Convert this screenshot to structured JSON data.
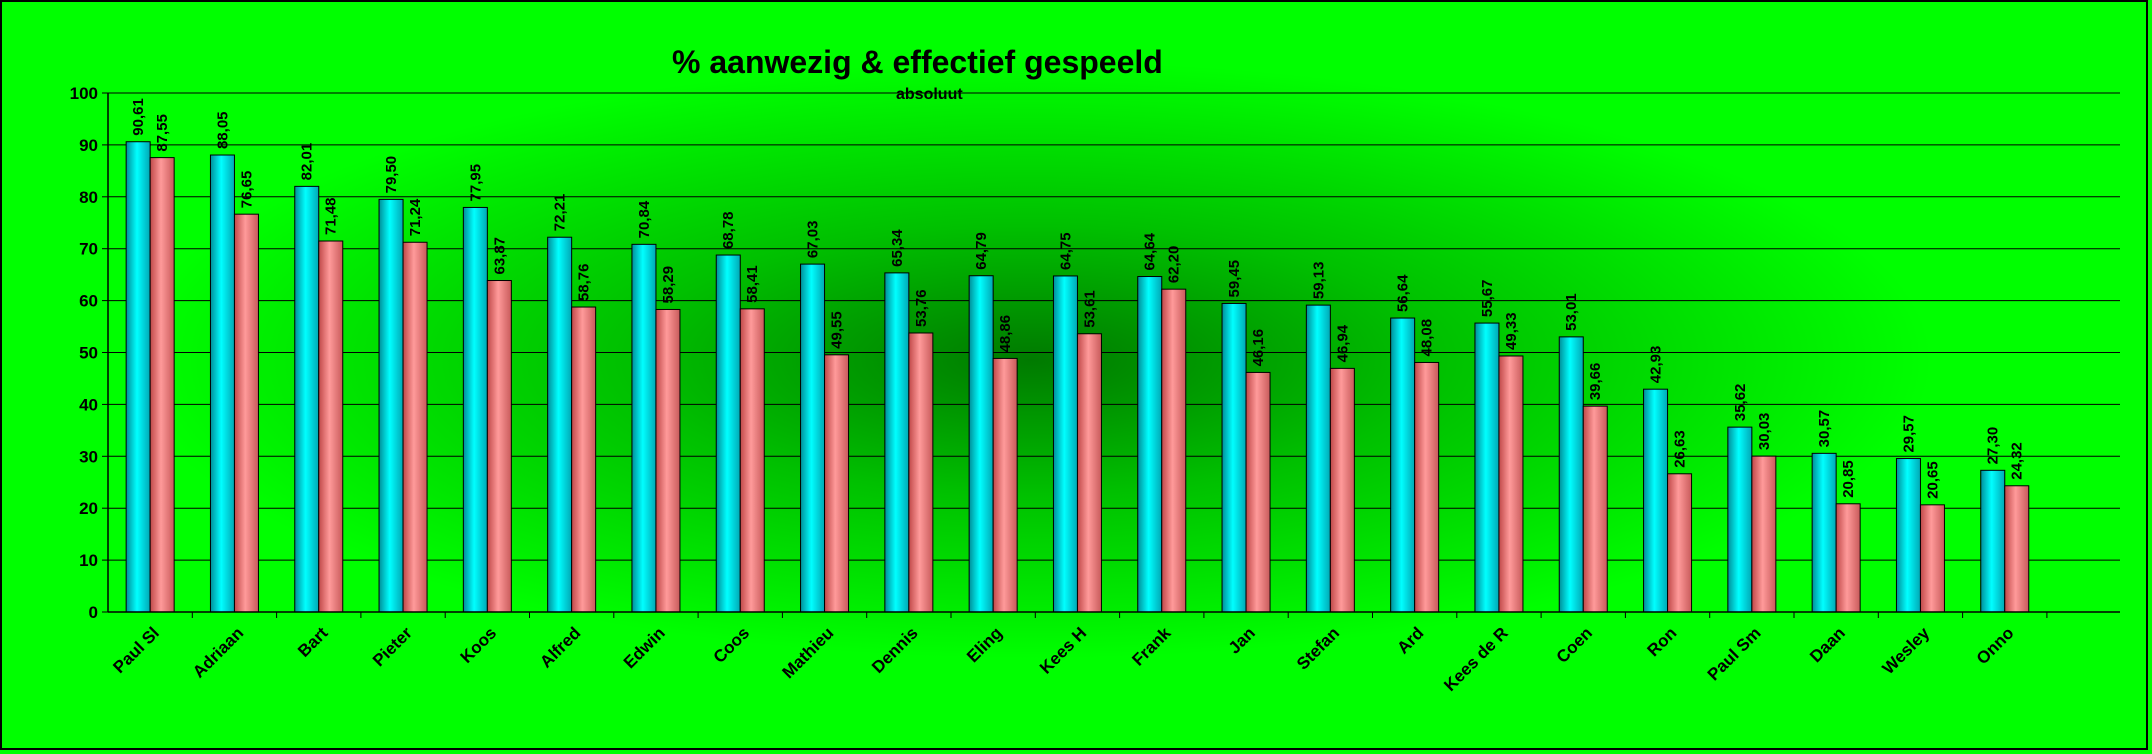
{
  "chart_data": {
    "type": "bar",
    "title": "% aanwezig & effectief gespeeld",
    "subtitle": "absoluut",
    "categories": [
      "Paul Sl",
      "Adriaan",
      "Bart",
      "Pieter",
      "Koos",
      "Alfred",
      "Edwin",
      "Coos",
      "Mathieu",
      "Dennis",
      "Eling",
      "Kees H",
      "Frank",
      "Jan",
      "Stefan",
      "Ard",
      "Kees de R",
      "Coen",
      "Ron",
      "Paul Sm",
      "Daan",
      "Wesley",
      "Onno"
    ],
    "series": [
      {
        "values": [
          90.61,
          88.05,
          82.01,
          79.5,
          77.95,
          72.21,
          70.84,
          68.78,
          67.03,
          65.34,
          64.79,
          64.75,
          64.64,
          59.45,
          59.13,
          56.64,
          55.67,
          53.01,
          42.93,
          35.62,
          30.57,
          29.57,
          27.3
        ],
        "labels": [
          "90,61",
          "88,05",
          "82,01",
          "79,50",
          "77,95",
          "72,21",
          "70,84",
          "68,78",
          "67,03",
          "65,34",
          "64,79",
          "64,75",
          "64,64",
          "59,45",
          "59,13",
          "56,64",
          "55,67",
          "53,01",
          "42,93",
          "35,62",
          "30,57",
          "29,57",
          "27,30"
        ],
        "color": "#00e5f0"
      },
      {
        "values": [
          87.55,
          76.65,
          71.48,
          71.24,
          63.87,
          58.76,
          58.29,
          58.41,
          49.55,
          53.76,
          48.86,
          53.61,
          62.2,
          46.16,
          46.94,
          48.08,
          49.33,
          39.66,
          26.63,
          30.03,
          20.85,
          20.65,
          24.32
        ],
        "labels": [
          "87,55",
          "76,65",
          "71,48",
          "71,24",
          "63,87",
          "58,76",
          "58,29",
          "58,41",
          "49,55",
          "53,76",
          "48,86",
          "53,61",
          "62,20",
          "46,16",
          "46,94",
          "48,08",
          "49,33",
          "39,66",
          "26,63",
          "30,03",
          "20,85",
          "20,65",
          "24,32"
        ],
        "color": "#f08080"
      }
    ],
    "ylim": [
      0,
      100
    ],
    "yticks": [
      0,
      10,
      20,
      30,
      40,
      50,
      60,
      70,
      80,
      90,
      100
    ],
    "grid": true,
    "legend": "none"
  }
}
